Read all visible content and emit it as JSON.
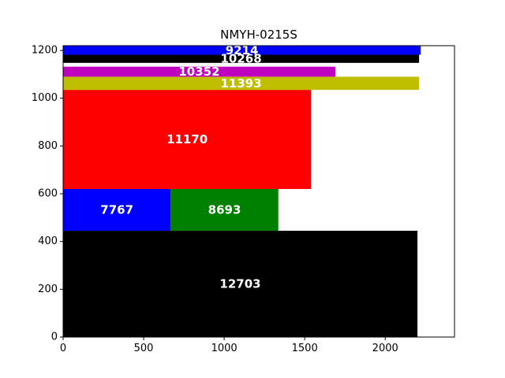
{
  "chart_data": {
    "type": "bar",
    "subtype": "packed-rectangles",
    "title": "NMYH-0215S",
    "xlabel": "",
    "ylabel": "",
    "xlim": [
      0,
      2430
    ],
    "ylim": [
      0,
      1220
    ],
    "xticks": [
      0,
      500,
      1000,
      1500,
      2000
    ],
    "yticks": [
      0,
      200,
      400,
      600,
      800,
      1000,
      1200
    ],
    "grid": false,
    "rects": [
      {
        "label": "12703",
        "x": 0,
        "y": 0,
        "w": 2200,
        "h": 445,
        "color": "#000000"
      },
      {
        "label": "7767",
        "x": 0,
        "y": 445,
        "w": 668,
        "h": 175,
        "color": "#0000ff"
      },
      {
        "label": "8693",
        "x": 668,
        "y": 445,
        "w": 668,
        "h": 175,
        "color": "#008000"
      },
      {
        "label": "11170",
        "x": 0,
        "y": 620,
        "w": 1540,
        "h": 415,
        "color": "#ff0000"
      },
      {
        "label": "11393",
        "x": 0,
        "y": 1035,
        "w": 2210,
        "h": 55,
        "color": "#bfbf00"
      },
      {
        "label": "10352",
        "x": 0,
        "y": 1090,
        "w": 1690,
        "h": 42,
        "color": "#bf00bf"
      },
      {
        "label": "10268",
        "x": 0,
        "y": 1148,
        "w": 2210,
        "h": 34,
        "color": "#000000"
      },
      {
        "label": "9214",
        "x": 0,
        "y": 1182,
        "w": 2220,
        "h": 38,
        "color": "#0000ff"
      }
    ]
  }
}
